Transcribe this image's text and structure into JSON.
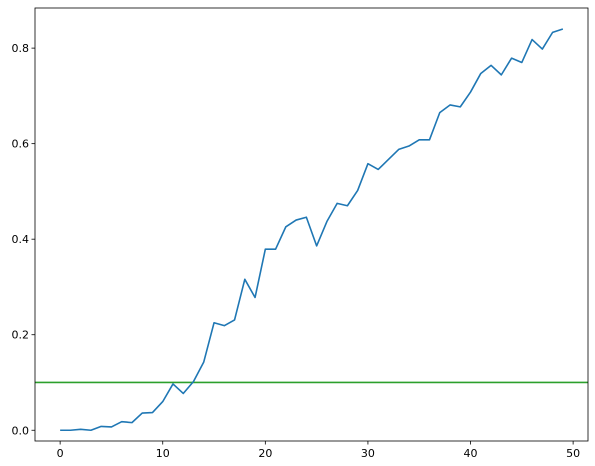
{
  "chart_data": {
    "type": "line",
    "title": "",
    "xlabel": "",
    "ylabel": "",
    "xlim": [
      -2.45,
      51.45
    ],
    "ylim": [
      -0.0225,
      0.884
    ],
    "grid": false,
    "x_ticks": [
      {
        "value": 0,
        "label": "0"
      },
      {
        "value": 10,
        "label": "10"
      },
      {
        "value": 20,
        "label": "20"
      },
      {
        "value": 30,
        "label": "30"
      },
      {
        "value": 40,
        "label": "40"
      },
      {
        "value": 50,
        "label": "50"
      }
    ],
    "y_ticks": [
      {
        "value": 0.0,
        "label": "0.0"
      },
      {
        "value": 0.2,
        "label": "0.2"
      },
      {
        "value": 0.4,
        "label": "0.4"
      },
      {
        "value": 0.6,
        "label": "0.6"
      },
      {
        "value": 0.8,
        "label": "0.8"
      }
    ],
    "series": [
      {
        "color": "#1f77b4",
        "x": [
          0,
          1,
          2,
          3,
          4,
          5,
          6,
          7,
          8,
          9,
          10,
          11,
          12,
          13,
          14,
          15,
          16,
          17,
          18,
          19,
          20,
          21,
          22,
          23,
          24,
          25,
          26,
          27,
          28,
          29,
          30,
          31,
          32,
          33,
          34,
          35,
          36,
          37,
          38,
          39,
          40,
          41,
          42,
          43,
          44,
          45,
          46,
          47,
          48,
          49
        ],
        "y": [
          0.0,
          0.0,
          0.002,
          0.0,
          0.008,
          0.007,
          0.018,
          0.016,
          0.036,
          0.037,
          0.06,
          0.097,
          0.077,
          0.102,
          0.143,
          0.225,
          0.219,
          0.231,
          0.316,
          0.278,
          0.379,
          0.379,
          0.426,
          0.44,
          0.446,
          0.386,
          0.437,
          0.475,
          0.47,
          0.502,
          0.558,
          0.546,
          0.567,
          0.588,
          0.595,
          0.608,
          0.608,
          0.665,
          0.681,
          0.677,
          0.708,
          0.747,
          0.764,
          0.744,
          0.779,
          0.77,
          0.818,
          0.798,
          0.833,
          0.84
        ]
      }
    ],
    "hlines": [
      {
        "y": 0.1,
        "color": "#2ca02c"
      }
    ]
  }
}
